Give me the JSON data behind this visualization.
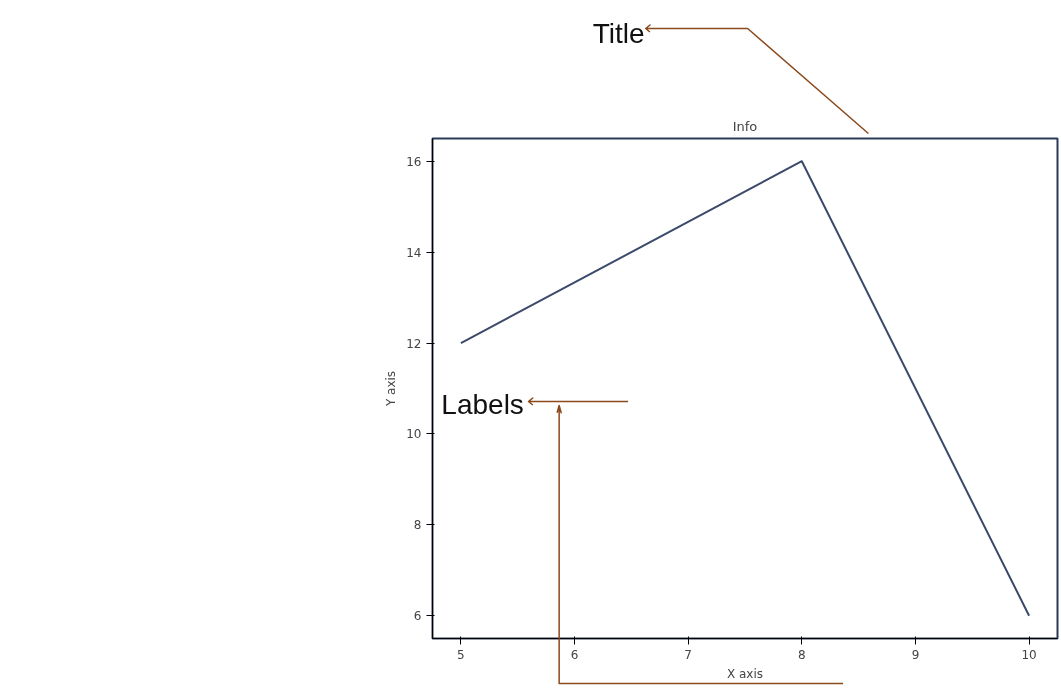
{
  "chart_data": {
    "type": "line",
    "title": "Info",
    "xlabel": "X axis",
    "ylabel": "Y axis",
    "x": [
      5,
      8,
      10
    ],
    "series": [
      {
        "color": "#3b4a6b",
        "values": [
          12,
          16,
          6
        ]
      }
    ],
    "xlim": [
      4.75,
      10.25
    ],
    "xticks": [
      5,
      6,
      7,
      8,
      9,
      10
    ],
    "ylim": [
      5.5,
      16.5
    ],
    "yticks": [
      6,
      8,
      10,
      12,
      14,
      16
    ],
    "grid": false,
    "annotations": [
      "Title",
      "Labels"
    ]
  }
}
